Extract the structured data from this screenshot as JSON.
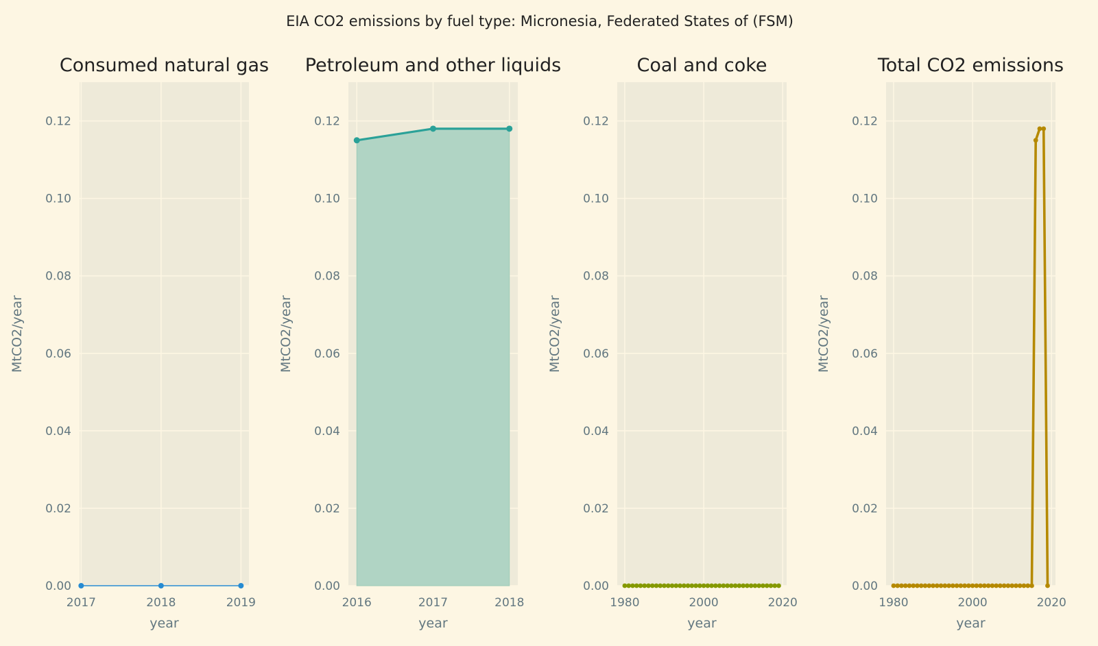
{
  "suptitle": "EIA CO2 emissions by fuel type: Micronesia, Federated States of (FSM)",
  "colors": {
    "background": "#fdf6e3",
    "plot_bg": "#eeead9",
    "grid": "#fdf6e3",
    "tick_text": "#627780",
    "natural_gas": "#268bd2",
    "petroleum_line": "#2aa198",
    "petroleum_fill": "#b0d4c4",
    "coal": "#859900",
    "total": "#b58900"
  },
  "chart_data": [
    {
      "type": "line",
      "title": "Consumed natural gas",
      "xlabel": "year",
      "ylabel": "MtCO2/year",
      "x": [
        2017,
        2018,
        2019
      ],
      "series": [
        {
          "values": [
            0,
            0,
            0
          ]
        }
      ],
      "xlim": [
        2016.98,
        2019.1
      ],
      "ylim": [
        0,
        0.13
      ],
      "xticks": [
        2017,
        2018,
        2019
      ],
      "yticks": [
        0.0,
        0.02,
        0.04,
        0.06,
        0.08,
        0.1,
        0.12
      ],
      "grid": true
    },
    {
      "type": "area",
      "title": "Petroleum and other liquids",
      "xlabel": "year",
      "ylabel": "MtCO2/year",
      "x": [
        2016,
        2017,
        2018
      ],
      "series": [
        {
          "values": [
            0.115,
            0.118,
            0.118
          ]
        }
      ],
      "xlim": [
        2015.89,
        2018.11
      ],
      "ylim": [
        0,
        0.13
      ],
      "xticks": [
        2016,
        2017,
        2018
      ],
      "yticks": [
        0.0,
        0.02,
        0.04,
        0.06,
        0.08,
        0.1,
        0.12
      ],
      "grid": true
    },
    {
      "type": "line",
      "title": "Coal and coke",
      "xlabel": "year",
      "ylabel": "MtCO2/year",
      "x": [
        1980,
        1981,
        1982,
        1983,
        1984,
        1985,
        1986,
        1987,
        1988,
        1989,
        1990,
        1991,
        1992,
        1993,
        1994,
        1995,
        1996,
        1997,
        1998,
        1999,
        2000,
        2001,
        2002,
        2003,
        2004,
        2005,
        2006,
        2007,
        2008,
        2009,
        2010,
        2011,
        2012,
        2013,
        2014,
        2015,
        2016,
        2017,
        2018,
        2019
      ],
      "series": [
        {
          "values": [
            0,
            0,
            0,
            0,
            0,
            0,
            0,
            0,
            0,
            0,
            0,
            0,
            0,
            0,
            0,
            0,
            0,
            0,
            0,
            0,
            0,
            0,
            0,
            0,
            0,
            0,
            0,
            0,
            0,
            0,
            0,
            0,
            0,
            0,
            0,
            0,
            0,
            0,
            0,
            0
          ]
        }
      ],
      "xlim": [
        1978.1,
        2021.0
      ],
      "ylim": [
        0,
        0.13
      ],
      "xticks": [
        1980,
        2000,
        2020
      ],
      "yticks": [
        0.0,
        0.02,
        0.04,
        0.06,
        0.08,
        0.1,
        0.12
      ],
      "grid": true
    },
    {
      "type": "line",
      "title": "Total CO2 emissions",
      "xlabel": "year",
      "ylabel": "MtCO2/year",
      "x": [
        1980,
        1981,
        1982,
        1983,
        1984,
        1985,
        1986,
        1987,
        1988,
        1989,
        1990,
        1991,
        1992,
        1993,
        1994,
        1995,
        1996,
        1997,
        1998,
        1999,
        2000,
        2001,
        2002,
        2003,
        2004,
        2005,
        2006,
        2007,
        2008,
        2009,
        2010,
        2011,
        2012,
        2013,
        2014,
        2015,
        2016,
        2017,
        2018,
        2019
      ],
      "series": [
        {
          "values": [
            0,
            0,
            0,
            0,
            0,
            0,
            0,
            0,
            0,
            0,
            0,
            0,
            0,
            0,
            0,
            0,
            0,
            0,
            0,
            0,
            0,
            0,
            0,
            0,
            0,
            0,
            0,
            0,
            0,
            0,
            0,
            0,
            0,
            0,
            0,
            0,
            0.115,
            0.118,
            0.118,
            0
          ]
        }
      ],
      "xlim": [
        1978.1,
        2021.0
      ],
      "ylim": [
        0,
        0.13
      ],
      "xticks": [
        1980,
        2000,
        2020
      ],
      "yticks": [
        0.0,
        0.02,
        0.04,
        0.06,
        0.08,
        0.1,
        0.12
      ],
      "grid": true
    }
  ]
}
